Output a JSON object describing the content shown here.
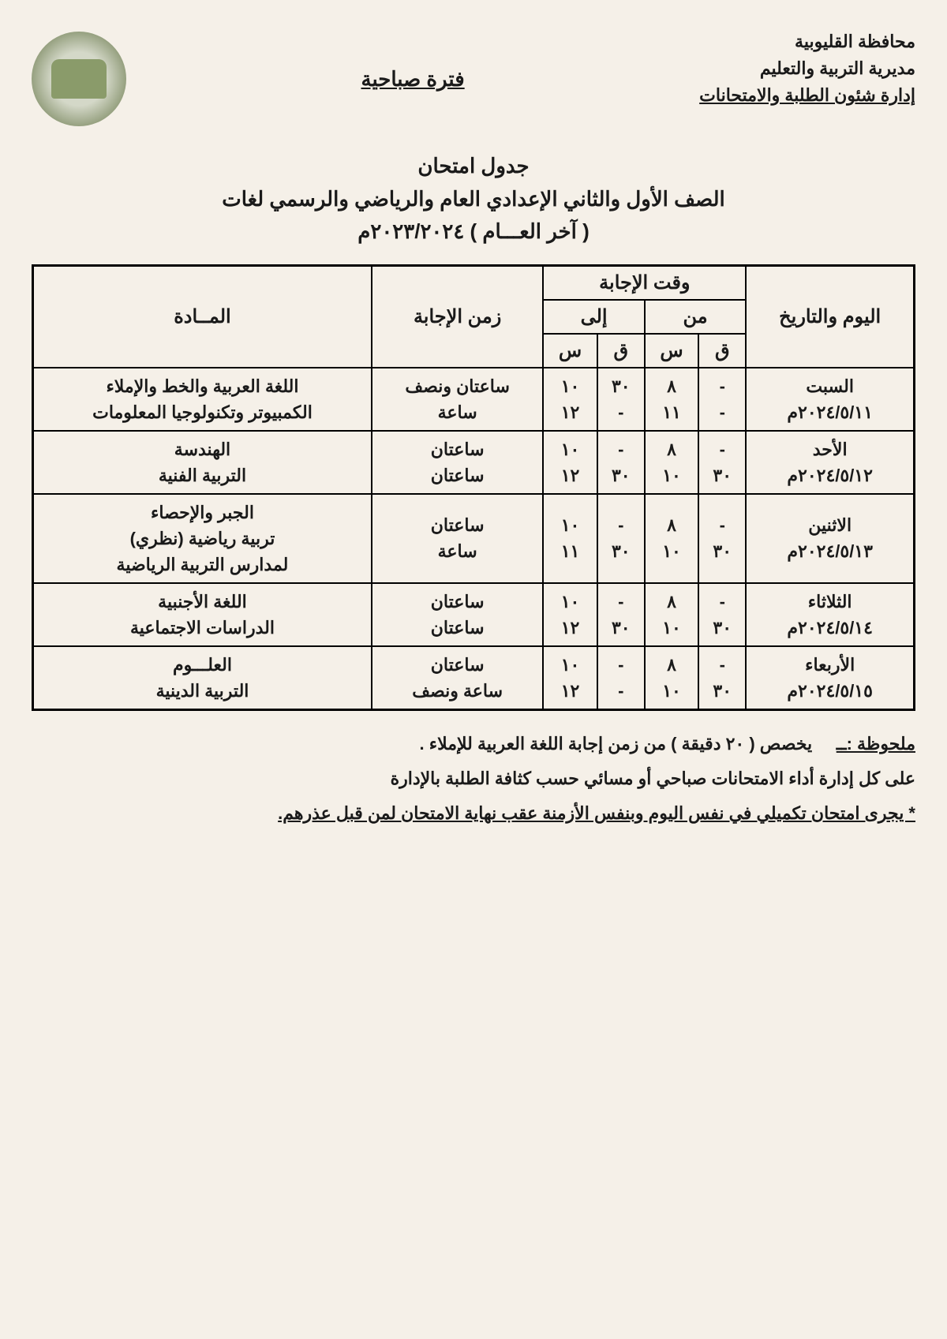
{
  "header": {
    "line1": "محافظة القليوبية",
    "line2": "مديرية التربية والتعليم",
    "line3": "إدارة شئون الطلبة والامتحانات",
    "period": "فترة صباحية"
  },
  "title": {
    "line1": "جدول امتحان",
    "line2": "الصف الأول والثاني الإعدادي العام والرياضي والرسمي لغات",
    "line3": "( آخر العـــام ) ٢٠٢٣/٢٠٢٤م"
  },
  "table": {
    "headers": {
      "date": "اليوم والتاريخ",
      "time": "وقت الإجابة",
      "from": "من",
      "to": "إلى",
      "d": "ق",
      "s": "س",
      "duration": "زمن الإجابة",
      "subject": "المــادة"
    },
    "rows": [
      {
        "day": "السبت",
        "date": "٢٠٢٤/٥/١١م",
        "from_d": "-\n-",
        "from_s": "٨\n١١",
        "to_d": "٣٠\n-",
        "to_s": "١٠\n١٢",
        "duration": "ساعتان ونصف\nساعة",
        "subject": "اللغة العربية والخط والإملاء\nالكمبيوتر وتكنولوجيا المعلومات"
      },
      {
        "day": "الأحد",
        "date": "٢٠٢٤/٥/١٢م",
        "from_d": "-\n٣٠",
        "from_s": "٨\n١٠",
        "to_d": "-\n٣٠",
        "to_s": "١٠\n١٢",
        "duration": "ساعتان\nساعتان",
        "subject": "الهندسة\nالتربية الفنية"
      },
      {
        "day": "الاثنين",
        "date": "٢٠٢٤/٥/١٣م",
        "from_d": "-\n٣٠",
        "from_s": "٨\n١٠",
        "to_d": "-\n٣٠",
        "to_s": "١٠\n١١",
        "duration": "ساعتان\nساعة",
        "subject": "الجبر والإحصاء\nتربية رياضية (نظري)\nلمدارس التربية الرياضية"
      },
      {
        "day": "الثلاثاء",
        "date": "٢٠٢٤/٥/١٤م",
        "from_d": "-\n٣٠",
        "from_s": "٨\n١٠",
        "to_d": "-\n٣٠",
        "to_s": "١٠\n١٢",
        "duration": "ساعتان\nساعتان",
        "subject": "اللغة الأجنبية\nالدراسات الاجتماعية"
      },
      {
        "day": "الأربعاء",
        "date": "٢٠٢٤/٥/١٥م",
        "from_d": "-\n٣٠",
        "from_s": "٨\n١٠",
        "to_d": "-\n-",
        "to_s": "١٠\n١٢",
        "duration": "ساعتان\nساعة ونصف",
        "subject": "العلـــوم\nالتربية الدينية"
      }
    ]
  },
  "notes": {
    "label": "ملحوظة :ــ",
    "note1": "يخصص ( ٢٠ دقيقة ) من زمن إجابة اللغة العربية للإملاء .",
    "note2": "على كل إدارة أداء الامتحانات صباحي أو مسائي حسب كثافة الطلبة بالإدارة",
    "note3": "* يجرى امتحان تكميلي في نفس اليوم وبنفس الأزمنة عقب نهاية الامتحان لمن قبل عذرهم."
  }
}
